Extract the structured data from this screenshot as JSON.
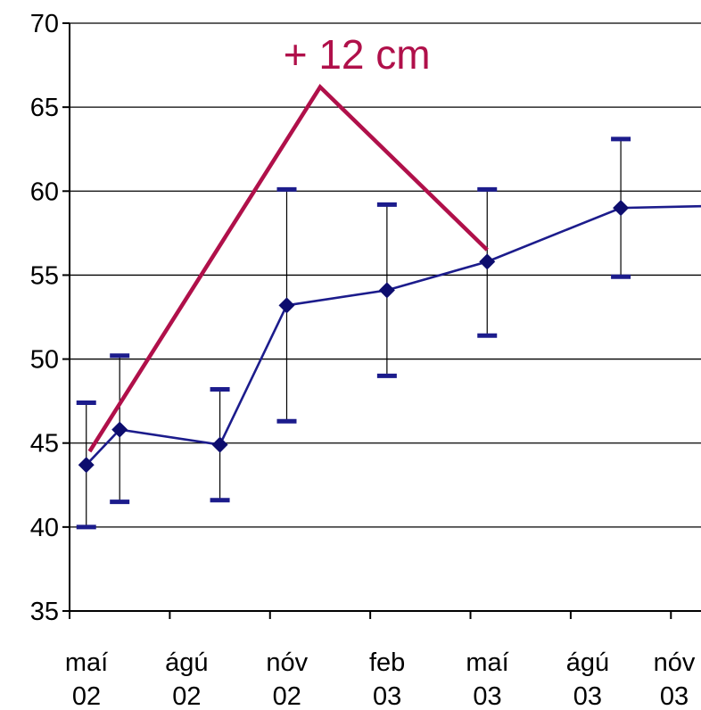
{
  "chart_data": {
    "type": "line",
    "title": "",
    "xlabel": "",
    "ylabel": "",
    "ylim": [
      35,
      70
    ],
    "yticks": [
      35,
      40,
      45,
      50,
      55,
      60,
      65,
      70
    ],
    "xlim": [
      0,
      18.9
    ],
    "grid": "horizontal",
    "xticks": [
      {
        "x": 0,
        "line1": "maí",
        "line2": "02"
      },
      {
        "x": 3,
        "line1": "ágú",
        "line2": "02"
      },
      {
        "x": 6,
        "line1": "nóv",
        "line2": "02"
      },
      {
        "x": 9,
        "line1": "feb",
        "line2": "03"
      },
      {
        "x": 12,
        "line1": "maí",
        "line2": "03"
      },
      {
        "x": 15,
        "line1": "ágú",
        "line2": "03"
      },
      {
        "x": 18,
        "line1": "nóv",
        "line2": "03"
      }
    ],
    "series": [
      {
        "color": "#1c1c8c",
        "points": [
          {
            "x": 0.5,
            "y": 43.7,
            "low": 40.0,
            "high": 47.4
          },
          {
            "x": 1.5,
            "y": 45.8,
            "low": 41.5,
            "high": 50.2
          },
          {
            "x": 4.5,
            "y": 44.9,
            "low": 41.6,
            "high": 48.2
          },
          {
            "x": 6.5,
            "y": 53.2,
            "low": 46.3,
            "high": 60.1
          },
          {
            "x": 9.5,
            "y": 54.1,
            "low": 49.0,
            "high": 59.2
          },
          {
            "x": 12.5,
            "y": 55.8,
            "low": 51.4,
            "high": 60.1
          },
          {
            "x": 16.5,
            "y": 59.0,
            "low": 54.9,
            "high": 63.1
          },
          {
            "x": 18.9,
            "y": 59.1
          }
        ]
      }
    ],
    "annotation": {
      "text": "+ 12 cm",
      "color": "#b0104a",
      "line": [
        {
          "x": 0.6,
          "y": 44.5
        },
        {
          "x": 7.5,
          "y": 66.2
        },
        {
          "x": 12.5,
          "y": 56.5
        }
      ],
      "text_anchor": {
        "x": 8.6,
        "y": 67.3
      }
    }
  }
}
